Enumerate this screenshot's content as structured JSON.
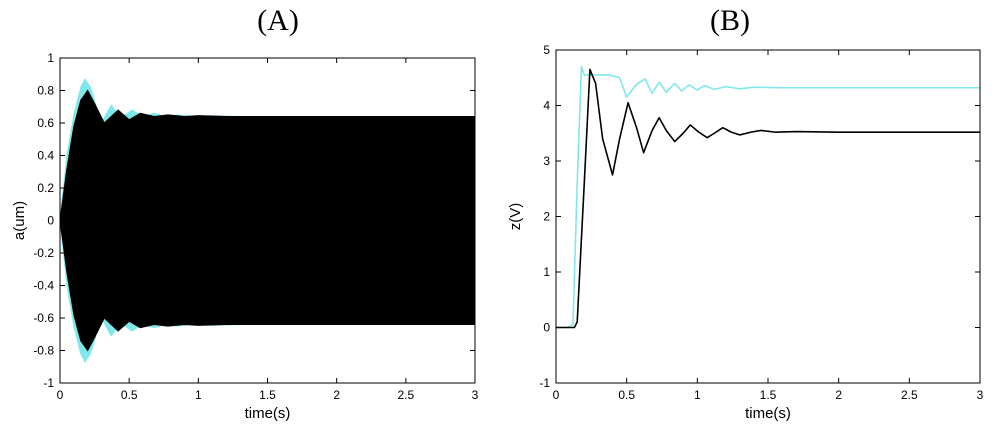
{
  "panels": {
    "a_label": "(A)",
    "b_label": "(B)"
  },
  "colors": {
    "outer": "#7fe8ec",
    "inner": "#000000",
    "axis": "#000000"
  },
  "chart_data": [
    {
      "id": "A",
      "type": "area",
      "title": "(A)",
      "xlabel": "time(s)",
      "ylabel": "a(um)",
      "xlim": [
        0,
        3
      ],
      "ylim": [
        -1,
        1
      ],
      "xticks": [
        0,
        0.5,
        1,
        1.5,
        2,
        2.5,
        3
      ],
      "xtick_labels": [
        "0",
        "0.5",
        "1",
        "1.5",
        "2",
        "2.5",
        "3"
      ],
      "yticks": [
        -1,
        -0.8,
        -0.6,
        -0.4,
        -0.2,
        0,
        0.2,
        0.4,
        0.6,
        0.8,
        1
      ],
      "ytick_labels": [
        "-1",
        "-0.8",
        "-0.6",
        "-0.4",
        "-0.2",
        "0",
        "0.2",
        "0.4",
        "0.6",
        "0.8",
        "1"
      ],
      "series": [
        {
          "color": "#7fe8ec",
          "x": [
            0,
            0.05,
            0.1,
            0.15,
            0.18,
            0.22,
            0.3,
            0.37,
            0.44,
            0.52,
            0.6,
            0.68,
            0.76,
            0.85,
            0.95,
            1.1,
            1.3,
            1.5,
            2.0,
            2.5,
            3.0
          ],
          "upper": [
            0,
            0.4,
            0.65,
            0.82,
            0.87,
            0.82,
            0.6,
            0.71,
            0.63,
            0.68,
            0.64,
            0.66,
            0.64,
            0.65,
            0.64,
            0.645,
            0.64,
            0.64,
            0.64,
            0.64,
            0.64
          ]
        },
        {
          "color": "#000000",
          "x": [
            0,
            0.05,
            0.1,
            0.15,
            0.2,
            0.25,
            0.32,
            0.42,
            0.5,
            0.58,
            0.68,
            0.78,
            0.9,
            1.0,
            1.2,
            1.5,
            2.0,
            2.5,
            3.0
          ],
          "upper": [
            0,
            0.32,
            0.58,
            0.74,
            0.8,
            0.72,
            0.6,
            0.68,
            0.62,
            0.66,
            0.64,
            0.65,
            0.64,
            0.645,
            0.64,
            0.64,
            0.64,
            0.64,
            0.64
          ]
        }
      ]
    },
    {
      "id": "B",
      "type": "line",
      "title": "(B)",
      "xlabel": "time(s)",
      "ylabel": "z(V)",
      "xlim": [
        0,
        3
      ],
      "ylim": [
        -1,
        5
      ],
      "xticks": [
        0,
        0.5,
        1,
        1.5,
        2,
        2.5,
        3
      ],
      "xtick_labels": [
        "0",
        "0.5",
        "1",
        "1.5",
        "2",
        "2.5",
        "3"
      ],
      "yticks": [
        -1,
        0,
        1,
        2,
        3,
        4,
        5
      ],
      "ytick_labels": [
        "-1",
        "0",
        "1",
        "2",
        "3",
        "4",
        "5"
      ],
      "series": [
        {
          "color": "#7fe8ec",
          "x": [
            0,
            0.08,
            0.12,
            0.15,
            0.18,
            0.2,
            0.25,
            0.3,
            0.38,
            0.45,
            0.5,
            0.57,
            0.63,
            0.68,
            0.73,
            0.78,
            0.84,
            0.89,
            0.94,
            1.0,
            1.05,
            1.12,
            1.2,
            1.3,
            1.4,
            1.6,
            2.0,
            3.0
          ],
          "y": [
            0,
            0,
            0.05,
            2.6,
            4.7,
            4.55,
            4.55,
            4.55,
            4.55,
            4.5,
            4.15,
            4.38,
            4.48,
            4.22,
            4.42,
            4.24,
            4.4,
            4.26,
            4.37,
            4.28,
            4.36,
            4.29,
            4.34,
            4.3,
            4.33,
            4.32,
            4.32,
            4.32
          ]
        },
        {
          "color": "#000000",
          "x": [
            0,
            0.13,
            0.15,
            0.2,
            0.24,
            0.28,
            0.33,
            0.4,
            0.45,
            0.51,
            0.57,
            0.62,
            0.68,
            0.73,
            0.78,
            0.84,
            0.9,
            0.95,
            1.01,
            1.07,
            1.12,
            1.18,
            1.24,
            1.3,
            1.38,
            1.45,
            1.55,
            1.7,
            2.0,
            3.0
          ],
          "y": [
            0,
            0,
            0.1,
            2.6,
            4.65,
            4.4,
            3.4,
            2.75,
            3.4,
            4.05,
            3.6,
            3.15,
            3.55,
            3.78,
            3.55,
            3.35,
            3.5,
            3.65,
            3.52,
            3.42,
            3.5,
            3.6,
            3.52,
            3.47,
            3.52,
            3.55,
            3.52,
            3.53,
            3.52,
            3.52
          ]
        }
      ]
    }
  ]
}
